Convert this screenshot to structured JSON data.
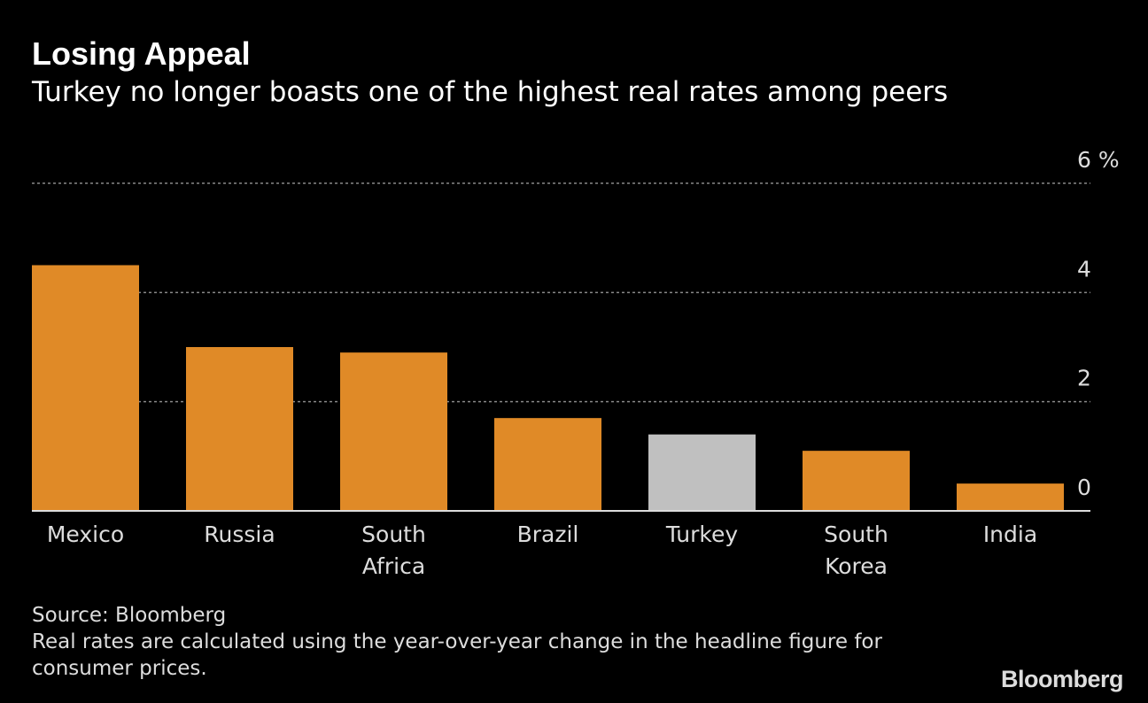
{
  "chart_data": {
    "type": "bar",
    "title": "Losing Appeal",
    "subtitle": "Turkey no longer boasts one of the highest real rates among peers",
    "categories": [
      "Mexico",
      "Russia",
      "South Africa",
      "Brazil",
      "Turkey",
      "South Korea",
      "India"
    ],
    "values": [
      4.5,
      3.0,
      2.9,
      1.7,
      1.4,
      1.1,
      0.5
    ],
    "colors": [
      "#e08a27",
      "#e08a27",
      "#e08a27",
      "#e08a27",
      "#c0c0c0",
      "#e08a27",
      "#e08a27"
    ],
    "ylim": [
      0,
      6
    ],
    "yticks": [
      0,
      2,
      4,
      {
        "value": 6,
        "label": "6 %"
      }
    ],
    "grid": true,
    "source": "Source: Bloomberg",
    "note": "Real rates are calculated using the year-over-year change in the headline figure for consumer prices.",
    "brand": "Bloomberg"
  }
}
